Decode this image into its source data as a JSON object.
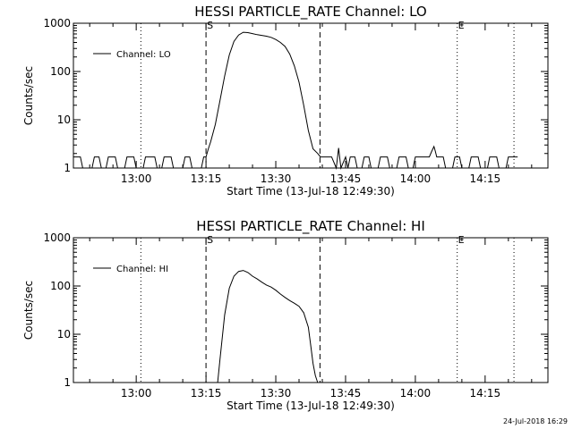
{
  "footer_timestamp": "24-Jul-2018 16:29",
  "chart_data": [
    {
      "type": "line",
      "title": "HESSI PARTICLE_RATE Channel: LO",
      "xlabel": "Start Time (13-Jul-18 12:49:30)",
      "ylabel": "Counts/sec",
      "yscale": "log",
      "ylim": [
        1,
        1000
      ],
      "xlim_minutes": [
        -13.5,
        88.5
      ],
      "x_ticks": [
        {
          "t": 0,
          "label": "13:00"
        },
        {
          "t": 15,
          "label": "13:15"
        },
        {
          "t": 30,
          "label": "13:30"
        },
        {
          "t": 45,
          "label": "13:45"
        },
        {
          "t": 60,
          "label": "14:00"
        },
        {
          "t": 75,
          "label": "14:15"
        }
      ],
      "y_ticks": [
        {
          "v": 1,
          "label": "1"
        },
        {
          "v": 10,
          "label": "10"
        },
        {
          "v": 100,
          "label": "100"
        },
        {
          "v": 1000,
          "label": "1000"
        }
      ],
      "legend": "Channel: LO",
      "legend_position": "top-left",
      "markers": [
        {
          "t": 15.0,
          "label": "S",
          "style": "dashed"
        },
        {
          "t": 39.5,
          "label": "",
          "style": "dashed"
        },
        {
          "t": 1.0,
          "label": "",
          "style": "dotted"
        },
        {
          "t": 69.0,
          "label": "E",
          "style": "dotted"
        },
        {
          "t": 81.2,
          "label": "",
          "style": "dotted"
        }
      ],
      "series": [
        {
          "name": "Channel: LO",
          "x": [
            -13.5,
            -12.0,
            -11.5,
            -9.5,
            -9.0,
            -8.0,
            -7.5,
            -6.5,
            -6.0,
            -4.5,
            -4.0,
            -2.5,
            -2.0,
            -0.5,
            0.0,
            1.5,
            2.0,
            4.0,
            4.5,
            5.5,
            6.0,
            7.5,
            8.0,
            10.0,
            10.5,
            11.5,
            12.0,
            14.0,
            14.5,
            15.0,
            15.5,
            16.0,
            17.0,
            18.0,
            19.0,
            20.0,
            21.0,
            22.0,
            23.0,
            24.0,
            25.0,
            26.0,
            27.0,
            28.0,
            29.0,
            30.0,
            31.0,
            32.0,
            33.0,
            34.0,
            35.0,
            36.0,
            37.0,
            38.0,
            39.0,
            39.6,
            40.0,
            41.0,
            42.0,
            43.0,
            43.5,
            44.0,
            45.0,
            45.5,
            46.0,
            47.0,
            47.5,
            48.5,
            49.0,
            50.0,
            50.5,
            52.0,
            52.5,
            54.0,
            54.5,
            56.0,
            56.5,
            58.0,
            58.5,
            59.5,
            60.0,
            61.0,
            61.5,
            63.0,
            63.5,
            64.0,
            64.3,
            64.6,
            65.0,
            66.0,
            66.5,
            68.0,
            68.5,
            69.5,
            70.0,
            71.5,
            72.0,
            73.5,
            74.0,
            75.5,
            76.0,
            77.5,
            78.0,
            79.5,
            80.0,
            81.5,
            82.0
          ],
          "values": [
            1.7,
            1.7,
            1.0,
            1.0,
            1.7,
            1.7,
            1.0,
            1.0,
            1.7,
            1.7,
            1.0,
            1.0,
            1.7,
            1.7,
            1.0,
            1.0,
            1.7,
            1.7,
            1.0,
            1.0,
            1.7,
            1.7,
            1.0,
            1.0,
            1.7,
            1.7,
            1.0,
            1.0,
            1.7,
            1.7,
            2.5,
            3.5,
            8,
            25,
            80,
            220,
            420,
            570,
            650,
            640,
            610,
            580,
            560,
            540,
            510,
            460,
            400,
            330,
            230,
            130,
            60,
            20,
            6,
            2.5,
            2.0,
            1.7,
            1.7,
            1.7,
            1.7,
            1.0,
            2.6,
            1.0,
            1.7,
            1.0,
            1.7,
            1.7,
            1.0,
            1.0,
            1.7,
            1.7,
            1.0,
            1.0,
            1.7,
            1.7,
            1.0,
            1.0,
            1.7,
            1.7,
            1.0,
            1.0,
            1.7,
            1.7,
            1.7,
            1.7,
            2.2,
            2.8,
            2.2,
            1.7,
            1.7,
            1.7,
            1.0,
            1.0,
            1.7,
            1.7,
            1.0,
            1.0,
            1.7,
            1.7,
            1.0,
            1.0,
            1.7,
            1.7,
            1.0,
            1.0,
            1.7,
            1.7,
            1.7
          ]
        }
      ]
    },
    {
      "type": "line",
      "title": "HESSI PARTICLE_RATE Channel: HI",
      "xlabel": "Start Time (13-Jul-18 12:49:30)",
      "ylabel": "Counts/sec",
      "yscale": "log",
      "ylim": [
        1,
        1000
      ],
      "xlim_minutes": [
        -13.5,
        88.5
      ],
      "x_ticks": [
        {
          "t": 0,
          "label": "13:00"
        },
        {
          "t": 15,
          "label": "13:15"
        },
        {
          "t": 30,
          "label": "13:30"
        },
        {
          "t": 45,
          "label": "13:45"
        },
        {
          "t": 60,
          "label": "14:00"
        },
        {
          "t": 75,
          "label": "14:15"
        }
      ],
      "y_ticks": [
        {
          "v": 1,
          "label": "1"
        },
        {
          "v": 10,
          "label": "10"
        },
        {
          "v": 100,
          "label": "100"
        },
        {
          "v": 1000,
          "label": "1000"
        }
      ],
      "legend": "Channel: HI",
      "legend_position": "top-left",
      "markers": [
        {
          "t": 15.0,
          "label": "S",
          "style": "dashed"
        },
        {
          "t": 39.5,
          "label": "",
          "style": "dashed"
        },
        {
          "t": 1.0,
          "label": "",
          "style": "dotted"
        },
        {
          "t": 69.0,
          "label": "E",
          "style": "dotted"
        },
        {
          "t": 81.2,
          "label": "",
          "style": "dotted"
        }
      ],
      "series": [
        {
          "name": "Channel: HI",
          "x": [
            17.5,
            18.0,
            19.0,
            20.0,
            21.0,
            22.0,
            23.0,
            24.0,
            25.0,
            26.0,
            27.0,
            28.0,
            29.0,
            30.0,
            31.0,
            32.0,
            33.0,
            34.0,
            35.0,
            36.0,
            37.0,
            37.5,
            38.0,
            38.5,
            39.0
          ],
          "values": [
            1.0,
            3,
            25,
            90,
            160,
            200,
            210,
            190,
            160,
            140,
            120,
            105,
            95,
            82,
            68,
            58,
            50,
            44,
            38,
            28,
            14,
            6,
            2.5,
            1.4,
            1.0
          ]
        }
      ]
    }
  ]
}
